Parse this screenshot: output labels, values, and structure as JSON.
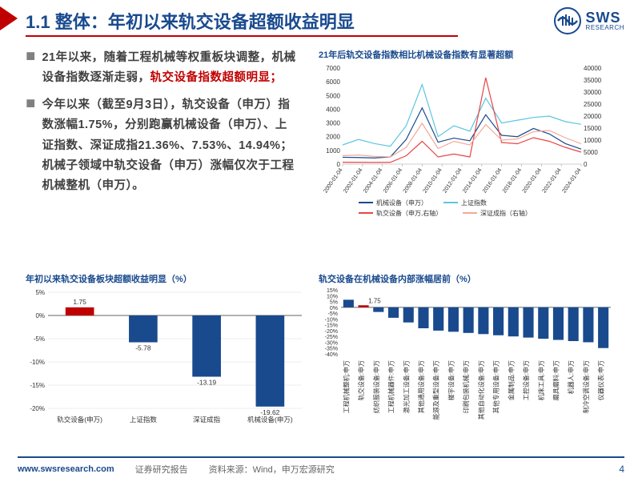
{
  "header": {
    "title": "1.1 整体：年初以来轨交设备超额收益明显",
    "logo_main": "SWS",
    "logo_sub": "RESEARCH"
  },
  "bullets": [
    {
      "prefix": "21年以来，随着工程机械等权重板块调整，机械设备指数逐渐走弱，",
      "highlight": "轨交设备指数超额明显；"
    },
    {
      "prefix": "今年以来（截至9月3日），轨交设备（申万）指数涨幅1.75%，分别跑赢机械设备（申万）、上证指数、深证成指21.36%、7.53%、14.94%；机械子领域中轨交设备（申万）涨幅仅次于工程机械整机（申万）。",
      "highlight": ""
    }
  ],
  "chart_line": {
    "title": "21年后轨交设备指数相比机械设备指数有显著超额",
    "y_left": {
      "min": 0,
      "max": 7000,
      "step": 1000
    },
    "y_right": {
      "min": 0,
      "max": 40000,
      "step": 5000
    },
    "x_labels": [
      "2000-01-04",
      "2002-01-04",
      "2004-01-04",
      "2006-01-04",
      "2008-01-04",
      "2010-01-04",
      "2012-01-04",
      "2014-01-04",
      "2016-01-04",
      "2018-01-04",
      "2020-01-04",
      "2022-01-04",
      "2024-01-04"
    ],
    "series": [
      {
        "name": "机械设备（申万）",
        "color": "#194a8e",
        "axis": "left",
        "data": [
          500,
          480,
          450,
          520,
          1800,
          4100,
          1600,
          1900,
          1700,
          3600,
          2100,
          2000,
          2600,
          2200,
          1500,
          1100
        ]
      },
      {
        "name": "上证指数",
        "color": "#5bc6e0",
        "axis": "left",
        "data": [
          1400,
          1800,
          1500,
          1300,
          2800,
          5800,
          2000,
          2800,
          2400,
          4800,
          3000,
          3200,
          3400,
          3500,
          3100,
          2900
        ]
      },
      {
        "name": "轨交设备（申万,右轴）",
        "color": "#e84545",
        "axis": "right",
        "data": [
          800,
          750,
          700,
          750,
          3500,
          9500,
          3000,
          4200,
          3000,
          36000,
          9000,
          8500,
          11000,
          9500,
          7000,
          5000
        ]
      },
      {
        "name": "深证成指（右轴）",
        "color": "#f4a896",
        "axis": "right",
        "data": [
          3500,
          3800,
          3200,
          3000,
          7000,
          17000,
          6500,
          9500,
          8000,
          16500,
          10000,
          10500,
          13500,
          14000,
          11000,
          8500
        ]
      }
    ],
    "legend_rows": [
      [
        {
          "name": "机械设备（申万）",
          "color": "#194a8e"
        },
        {
          "name": "上证指数",
          "color": "#5bc6e0"
        }
      ],
      [
        {
          "name": "轨交设备（申万,右轴）",
          "color": "#e84545"
        },
        {
          "name": "深证成指（右轴）",
          "color": "#f4a896"
        }
      ]
    ]
  },
  "chart_bar_left": {
    "title": "年初以来轨交设备板块超额收益明显（%）",
    "y": {
      "min": -20,
      "max": 5,
      "step": 5
    },
    "bars": [
      {
        "label": "轨交设备(申万)",
        "value": 1.75,
        "color": "#c00000"
      },
      {
        "label": "上证指数",
        "value": -5.78,
        "color": "#194a8e"
      },
      {
        "label": "深证成指",
        "value": -13.19,
        "color": "#194a8e"
      },
      {
        "label": "机械设备(申万)",
        "value": -19.62,
        "color": "#194a8e"
      }
    ]
  },
  "chart_bar_right": {
    "title": "轨交设备在机械设备内部涨幅居前（%）",
    "y": {
      "min": -40,
      "max": 15,
      "step": 5
    },
    "first_value_label": "1.75",
    "bars": [
      {
        "label": "工程机械整机:申万",
        "value": 6.5,
        "color": "#194a8e"
      },
      {
        "label": "轨交设备:申万",
        "value": 1.75,
        "color": "#c00000"
      },
      {
        "label": "纺织服装设备:申万",
        "value": -4,
        "color": "#194a8e"
      },
      {
        "label": "工程机械器件:申万",
        "value": -9,
        "color": "#194a8e"
      },
      {
        "label": "激光加工设备:申万",
        "value": -13,
        "color": "#194a8e"
      },
      {
        "label": "其他通用设备:申万",
        "value": -18,
        "color": "#194a8e"
      },
      {
        "label": "能源及重型设备:申万",
        "value": -20,
        "color": "#194a8e"
      },
      {
        "label": "楼宇设备:申万",
        "value": -21,
        "color": "#194a8e"
      },
      {
        "label": "印刷包装机械:申万",
        "value": -22,
        "color": "#194a8e"
      },
      {
        "label": "其他自动化设备:申万",
        "value": -23,
        "color": "#194a8e"
      },
      {
        "label": "其他专用设备:申万",
        "value": -24,
        "color": "#194a8e"
      },
      {
        "label": "金属制品:申万",
        "value": -25,
        "color": "#194a8e"
      },
      {
        "label": "工控设备:申万",
        "value": -26,
        "color": "#194a8e"
      },
      {
        "label": "机床工具:申万",
        "value": -27,
        "color": "#194a8e"
      },
      {
        "label": "磨具磨料:申万",
        "value": -28,
        "color": "#194a8e"
      },
      {
        "label": "机器人:申万",
        "value": -29,
        "color": "#194a8e"
      },
      {
        "label": "制冷空调设备:申万",
        "value": -30,
        "color": "#194a8e"
      },
      {
        "label": "仪器仪表:申万",
        "value": -35,
        "color": "#194a8e"
      }
    ]
  },
  "footer": {
    "url": "www.swsresearch.com",
    "report_label": "证券研究报告",
    "source": "资料来源：Wind，申万宏源研究",
    "page": "4"
  }
}
